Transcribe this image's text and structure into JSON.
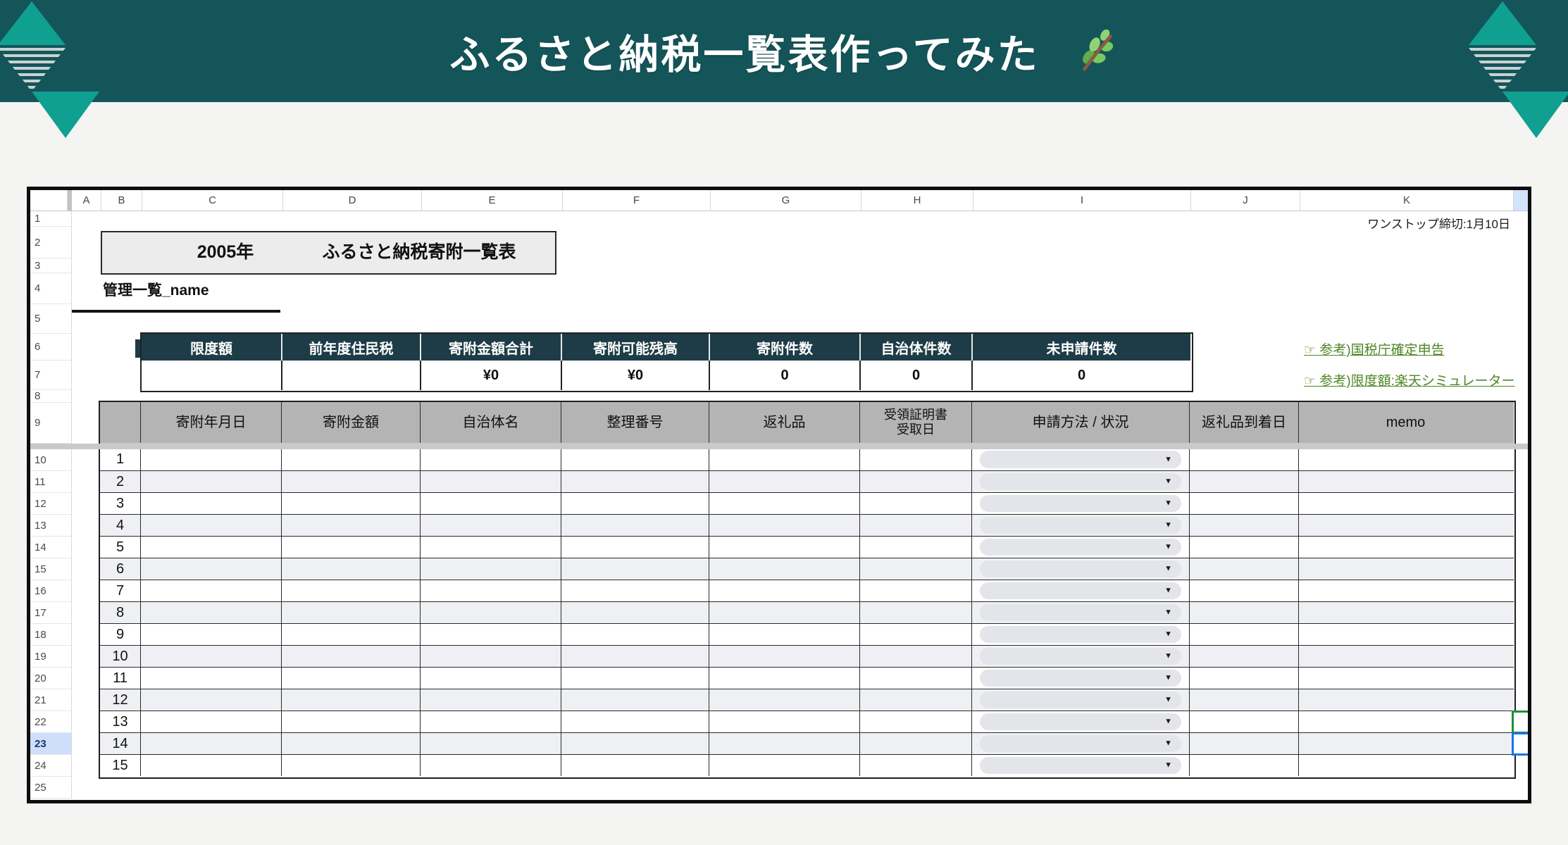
{
  "banner": {
    "title": "ふるさと納税一覧表作ってみた",
    "herb_icon": "herb-branch (🌿)"
  },
  "colors": {
    "banner_bg": "#14555a",
    "ornament_teal": "#0fa091",
    "ornament_stripe": "#c9d3d2",
    "summary_header_bg": "#1d3c47",
    "table_header_bg": "#b4b4b4",
    "link_green": "#4f8626",
    "active_cell_blue": "#1a73e8",
    "collaborator_green": "#1e8e3e",
    "selected_row_header_bg": "#cfdffb",
    "banded_row_bg": "#eff0f3",
    "column_l_header_bg": "#d2e3fc",
    "page_bg": "#f4f4f3"
  },
  "sheet": {
    "column_letters": [
      "A",
      "B",
      "C",
      "D",
      "E",
      "F",
      "G",
      "H",
      "I",
      "J",
      "K"
    ],
    "row_numbers": [
      "1",
      "2",
      "3",
      "4",
      "5",
      "6",
      "7",
      "8",
      "9",
      "10",
      "11",
      "12",
      "13",
      "14",
      "15",
      "16",
      "17",
      "18",
      "19",
      "20",
      "21",
      "22",
      "23",
      "24",
      "25"
    ],
    "active_row_number": "23",
    "note_top_right": "ワンストップ締切:1月10日",
    "title_cell": {
      "year": "2005年",
      "title": "ふるさと納税寄附一覧表"
    },
    "list_name": "管理一覧_name",
    "summary": {
      "headers": [
        "限度額",
        "前年度住民税",
        "寄附金額合計",
        "寄附可能残高",
        "寄附件数",
        "自治体件数",
        "未申請件数"
      ],
      "values": [
        "",
        "",
        "¥0",
        "¥0",
        "0",
        "0",
        "0"
      ]
    },
    "links": [
      "☞ 参考)国税庁確定申告",
      "☞ 参考)限度額:楽天シミュレーター"
    ],
    "table": {
      "headers": [
        "",
        "寄附年月日",
        "寄附金額",
        "自治体名",
        "整理番号",
        "返礼品",
        "受領証明書\n受取日",
        "申請方法 / 状況",
        "返礼品到着日",
        "memo"
      ],
      "data_row_numbers": [
        "1",
        "2",
        "3",
        "4",
        "5",
        "6",
        "7",
        "8",
        "9",
        "10",
        "11",
        "12",
        "13",
        "14",
        "15"
      ],
      "dropdown_value": "",
      "dropdown_arrow": "▼"
    }
  }
}
